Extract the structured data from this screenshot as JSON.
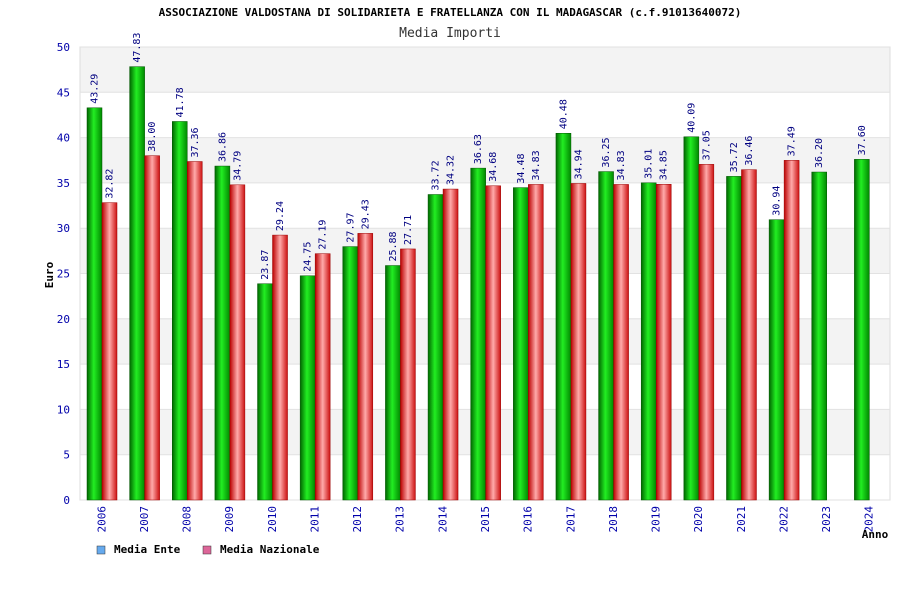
{
  "chart_data": {
    "type": "bar",
    "title": "ASSOCIAZIONE VALDOSTANA DI SOLIDARIETA E FRATELLANZA CON IL MADAGASCAR (c.f.91013640072)",
    "subtitle": "Media Importi",
    "ylabel": "Euro",
    "xlabel": "Anno",
    "ylim": [
      0,
      50
    ],
    "yticks": [
      0,
      5,
      10,
      15,
      20,
      25,
      30,
      35,
      40,
      45,
      50
    ],
    "grid": "horizontal bands",
    "legend_position": "bottom-left",
    "categories": [
      "2006",
      "2007",
      "2008",
      "2009",
      "2010",
      "2011",
      "2012",
      "2013",
      "2014",
      "2015",
      "2016",
      "2017",
      "2018",
      "2019",
      "2020",
      "2021",
      "2022",
      "2023",
      "2024"
    ],
    "series": [
      {
        "name": "Media Ente",
        "color": "#00bb00",
        "legend_color": "#66aaee",
        "values": [
          43.29,
          47.83,
          41.78,
          36.86,
          23.87,
          24.75,
          27.97,
          25.88,
          33.72,
          36.63,
          34.48,
          40.48,
          36.25,
          35.01,
          40.09,
          35.72,
          30.94,
          36.2,
          37.6
        ],
        "labels": [
          "43.29",
          "47.83",
          "41.78",
          "36.86",
          "23.87",
          "24.75",
          "27.97",
          "25.88",
          "33.72",
          "36.63",
          "34.48",
          "40.48",
          "36.25",
          "35.01",
          "40.09",
          "35.72",
          "30.94",
          "36.20",
          "37.60"
        ]
      },
      {
        "name": "Media Nazionale",
        "color": "#ee3333",
        "legend_color": "#dd6699",
        "values": [
          32.82,
          38.0,
          37.36,
          34.79,
          29.24,
          27.19,
          29.43,
          27.71,
          34.32,
          34.68,
          34.83,
          34.94,
          34.83,
          34.85,
          37.05,
          36.46,
          37.49,
          null,
          null
        ],
        "labels": [
          "32.82",
          "38.00",
          "37.36",
          "34.79",
          "29.24",
          "27.19",
          "29.43",
          "27.71",
          "34.32",
          "34.68",
          "34.83",
          "34.94",
          "34.83",
          "34.85",
          "37.05",
          "36.46",
          "37.49",
          null,
          null
        ]
      }
    ]
  }
}
